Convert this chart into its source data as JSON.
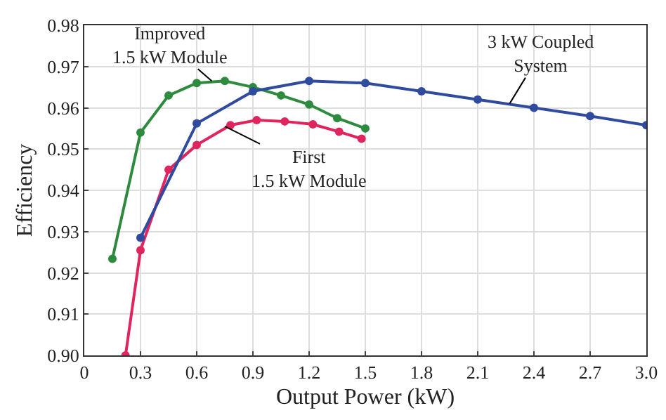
{
  "chart_data": {
    "type": "line",
    "xlabel": "Output Power (kW)",
    "ylabel": "Efficiency",
    "xlim": [
      0,
      3.0
    ],
    "xticks": [
      {
        "value": 0,
        "label": "0"
      },
      0.3,
      0.6,
      0.9,
      1.2,
      1.5,
      1.8,
      2.1,
      2.4,
      2.7,
      {
        "value": 3,
        "label": "3.0"
      }
    ],
    "ylim": [
      0.9,
      0.98
    ],
    "yticks": [
      {
        "value": 0.9,
        "label": "0.90"
      },
      0.91,
      0.92,
      0.93,
      0.94,
      0.95,
      0.96,
      0.97,
      0.98
    ],
    "grid": true,
    "marker": "circle",
    "line_style": "solid",
    "series": [
      {
        "color": "#2e8b3e",
        "x": [
          0.15,
          0.3,
          0.45,
          0.6,
          0.75,
          0.9,
          1.05,
          1.2,
          1.35,
          1.5
        ],
        "values": [
          0.9234,
          0.954,
          0.963,
          0.966,
          0.9665,
          0.965,
          0.963,
          0.9608,
          0.9575,
          0.955
        ]
      },
      {
        "color": "#e0245e",
        "x": [
          0.22,
          0.3,
          0.45,
          0.6,
          0.78,
          0.92,
          1.07,
          1.22,
          1.36,
          1.48
        ],
        "values": [
          0.9,
          0.9255,
          0.945,
          0.951,
          0.9558,
          0.957,
          0.9567,
          0.956,
          0.9542,
          0.9525
        ]
      },
      {
        "color": "#2f4a9e",
        "x": [
          0.3,
          0.6,
          0.9,
          1.2,
          1.5,
          1.8,
          2.1,
          2.4,
          2.7,
          3.0
        ],
        "values": [
          0.9285,
          0.9562,
          0.964,
          0.9665,
          0.966,
          0.964,
          0.962,
          0.96,
          0.958,
          0.9558
        ]
      }
    ],
    "annotations": [
      {
        "text": "Improved\n1.5 kW Module",
        "x": 0.68,
        "y": 0.9665
      },
      {
        "text": "First\n1.5 kW Module",
        "x": 0.75,
        "y": 0.9555
      },
      {
        "text": "3 kW Coupled\nSystem",
        "x": 2.27,
        "y": 0.961
      }
    ]
  }
}
